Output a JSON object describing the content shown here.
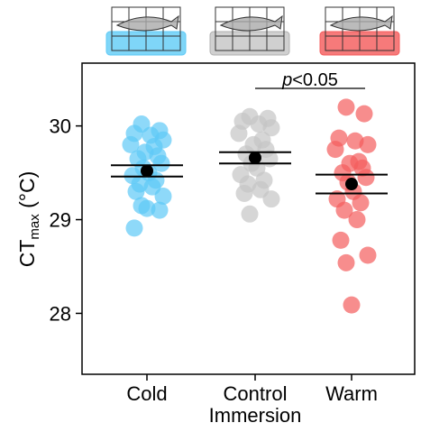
{
  "chart_data": {
    "type": "strip",
    "ylabel": {
      "main": "CT",
      "sub": "max",
      "unit": " (°C)"
    },
    "annotation": {
      "symbol": "p",
      "threshold": "<0.05"
    },
    "categories": [
      "Cold",
      "Control Immersion",
      "Warm"
    ],
    "groups": [
      {
        "color": "#5ec9f6",
        "mean": 29.52,
        "error": 0.06,
        "values": [
          30.02,
          29.95,
          29.92,
          29.9,
          29.85,
          29.8,
          29.78,
          29.72,
          29.68,
          29.65,
          29.6,
          29.55,
          29.5,
          29.47,
          29.42,
          29.38,
          29.35,
          29.3,
          29.25,
          29.15,
          29.12,
          29.1,
          28.91
        ]
      },
      {
        "color": "#c4c4c4",
        "mean": 29.66,
        "error": 0.06,
        "values": [
          30.1,
          30.08,
          30.05,
          30.02,
          29.98,
          29.92,
          29.85,
          29.8,
          29.75,
          29.7,
          29.65,
          29.6,
          29.55,
          29.48,
          29.42,
          29.38,
          29.32,
          29.28,
          29.22,
          29.06
        ]
      },
      {
        "color": "#f45c5c",
        "mean": 29.38,
        "error": 0.1,
        "values": [
          30.2,
          30.13,
          29.87,
          29.84,
          29.8,
          29.75,
          29.62,
          29.6,
          29.55,
          29.5,
          29.45,
          29.4,
          29.3,
          29.22,
          29.18,
          29.1,
          29.0,
          28.78,
          28.62,
          28.54,
          28.09
        ]
      }
    ],
    "ylim": [
      27.35,
      30.67
    ],
    "yticks": [
      28,
      29,
      30
    ]
  }
}
